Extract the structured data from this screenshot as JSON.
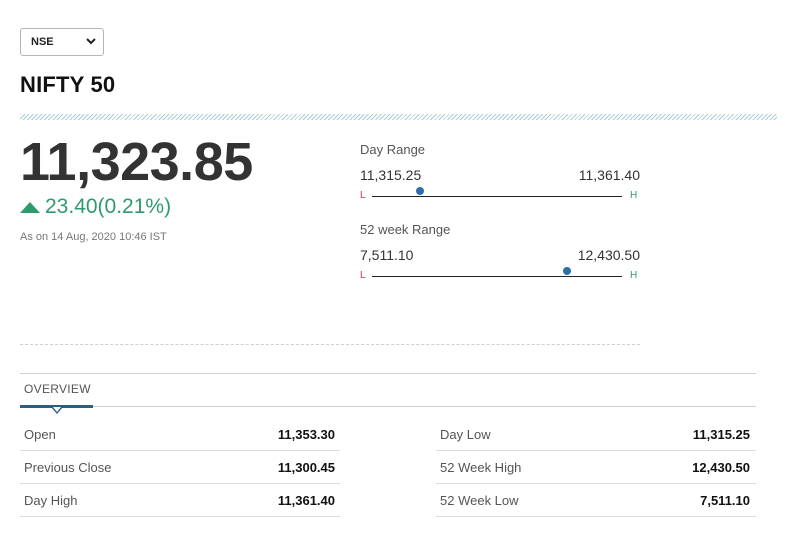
{
  "exchange": {
    "selected": "NSE"
  },
  "index": {
    "name": "NIFTY 50"
  },
  "quote": {
    "price": "11,323.85",
    "change": "23.40(0.21%)",
    "as_of": "As on 14 Aug, 2020 10:46 IST",
    "direction": "up"
  },
  "ranges": {
    "day": {
      "label": "Day Range",
      "low": "11,315.25",
      "high": "11,361.40",
      "position": 0.19,
      "low_tag": "L",
      "high_tag": "H"
    },
    "week52": {
      "label": "52 week Range",
      "low": "7,511.10",
      "high": "12,430.50",
      "position": 0.78,
      "low_tag": "L",
      "high_tag": "H"
    }
  },
  "tabs": {
    "overview": "OVERVIEW"
  },
  "overview": {
    "left": [
      {
        "label": "Open",
        "value": "11,353.30"
      },
      {
        "label": "Previous Close",
        "value": "11,300.45"
      },
      {
        "label": "Day High",
        "value": "11,361.40"
      }
    ],
    "right": [
      {
        "label": "Day Low",
        "value": "11,315.25"
      },
      {
        "label": "52 Week High",
        "value": "12,430.50"
      },
      {
        "label": "52 Week Low",
        "value": "7,511.10"
      }
    ]
  },
  "colors": {
    "positive": "#2f9a6e",
    "negative": "#cc3a3a",
    "accent": "#2b5f80",
    "marker": "#2e6ea8"
  }
}
